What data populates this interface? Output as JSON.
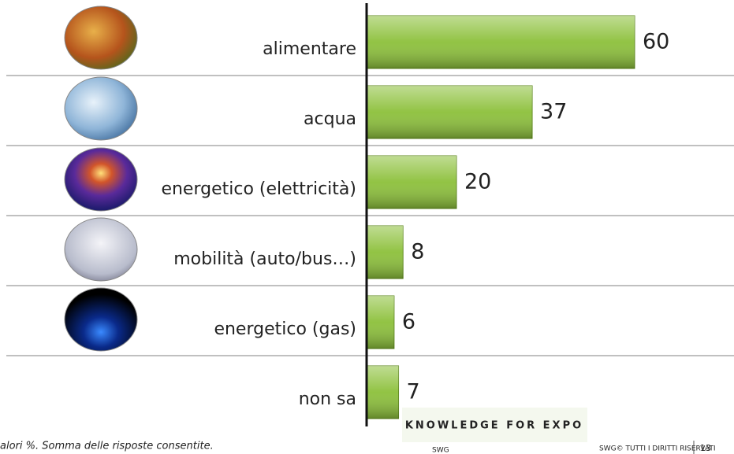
{
  "chart_data": {
    "type": "hbar",
    "categories": [
      "alimentare",
      "acqua",
      "energetico (elettricità)",
      "mobilità (auto/bus…)",
      "energetico (gas)",
      "non sa"
    ],
    "values": [
      60,
      37,
      20,
      8,
      6,
      7
    ],
    "color": "#8cc03a",
    "xlim": [
      0,
      60
    ],
    "footnote": "alori %. Somma delle risposte consentite."
  },
  "logo": {
    "text": "KNOWLEDGE FOR EXPO",
    "brand": "SWG"
  },
  "footer": {
    "copyright": "SWG© TUTTI I DIRITTI RISERVATI",
    "page": "13"
  }
}
